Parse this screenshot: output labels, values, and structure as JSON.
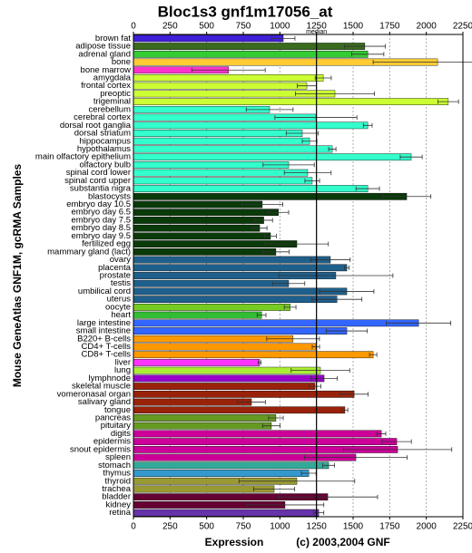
{
  "chart_data": {
    "type": "bar",
    "orientation": "horizontal",
    "title": "Bloc1s3 gnf1m17056_at",
    "y_label": "Mouse GeneAtlas GNF1M, gcRMA Samples",
    "x_label": "Expression",
    "credit": "(c) 2003,2004 GNF",
    "median_label": "median",
    "median": 1250,
    "xlim": [
      0,
      2250
    ],
    "xticks": [
      0,
      250,
      500,
      750,
      1000,
      1250,
      1500,
      1750,
      2000,
      2250
    ],
    "grid": true,
    "categories": [
      "brown fat",
      "adipose tissue",
      "adrenal gland",
      "bone",
      "bone marrow",
      "amygdala",
      "frontal cortex",
      "preoptic",
      "trigeminal",
      "cerebellum",
      "cerebral cortex",
      "dorsal root ganglia",
      "dorsal striatum",
      "hippocampus",
      "hypothalamus",
      "main olfactory epithelium",
      "olfactory bulb",
      "spinal cord lower",
      "spinal cord upper",
      "substantia nigra",
      "blastocysts",
      "embryo day 10.5",
      "embryo day 6.5",
      "embryo day 7.5",
      "embryo day 8.5",
      "embryo day 9.5",
      "fertilized egg",
      "mammary gland (lact)",
      "ovary",
      "placenta",
      "prostate",
      "testis",
      "umbilical cord",
      "uterus",
      "oocyte",
      "heart",
      "large intestine",
      "small intestine",
      "B220+ B-cells",
      "CD4+ T-cells",
      "CD8+ T-cells",
      "liver",
      "lung",
      "lymphnode",
      "skeletal muscle",
      "vomeronasal organ",
      "salivary gland",
      "tongue",
      "pancreas",
      "pituitary",
      "digits",
      "epidermis",
      "snout epidermis",
      "spleen",
      "stomach",
      "thymus",
      "thyroid",
      "trachea",
      "bladder",
      "kidney",
      "retina"
    ],
    "values": [
      1023,
      1580,
      1600,
      2077,
      650,
      1296,
      1184,
      1376,
      2150,
      930,
      1246,
      1600,
      1153,
      1203,
      1358,
      1897,
      1060,
      1190,
      1221,
      1600,
      1866,
      880,
      990,
      890,
      862,
      936,
      1116,
      973,
      1345,
      1457,
      1382,
      1060,
      1457,
      1390,
      1070,
      875,
      1947,
      1457,
      1090,
      1246,
      1637,
      862,
      1277,
      1302,
      1240,
      1507,
      806,
      1444,
      973,
      942,
      1693,
      1798,
      1804,
      1519,
      1333,
      1197,
      1116,
      961,
      1327,
      1035,
      1265
    ],
    "errors": [
      80,
      140,
      110,
      440,
      250,
      55,
      65,
      270,
      70,
      160,
      280,
      30,
      110,
      50,
      25,
      75,
      175,
      160,
      50,
      80,
      165,
      140,
      70,
      60,
      50,
      40,
      215,
      90,
      135,
      15,
      390,
      110,
      185,
      170,
      40,
      30,
      220,
      140,
      180,
      25,
      25,
      10,
      200,
      90,
      40,
      95,
      95,
      20,
      50,
      60,
      30,
      100,
      370,
      350,
      40,
      50,
      395,
      140,
      340,
      265,
      35
    ],
    "colors": [
      "#4020d6",
      "#3a6b1f",
      "#33cc33",
      "#ffcc33",
      "#ff33cc",
      "#ccff33",
      "#ccff33",
      "#ccff33",
      "#ccff33",
      "#33ffcc",
      "#33ffcc",
      "#33ffcc",
      "#33ffcc",
      "#33ffcc",
      "#33ffcc",
      "#33ffcc",
      "#33ffcc",
      "#33ffcc",
      "#33ffcc",
      "#33ffcc",
      "#0a3a0a",
      "#0a3a0a",
      "#0a3a0a",
      "#0a3a0a",
      "#0a3a0a",
      "#0a3a0a",
      "#0a3a0a",
      "#0a3a0a",
      "#1f5f8b",
      "#1f5f8b",
      "#1f5f8b",
      "#1f5f8b",
      "#1f5f8b",
      "#1f5f8b",
      "#77cc22",
      "#33bb33",
      "#3366ff",
      "#3366ff",
      "#ff9900",
      "#ff9900",
      "#ff9900",
      "#ff33ff",
      "#aaee33",
      "#9900cc",
      "#99220a",
      "#99220a",
      "#99220a",
      "#99220a",
      "#669922",
      "#669922",
      "#cc0099",
      "#cc0099",
      "#cc0099",
      "#cc0099",
      "#33aa99",
      "#3399cc",
      "#999933",
      "#999933",
      "#660033",
      "#660033",
      "#6633aa"
    ]
  }
}
